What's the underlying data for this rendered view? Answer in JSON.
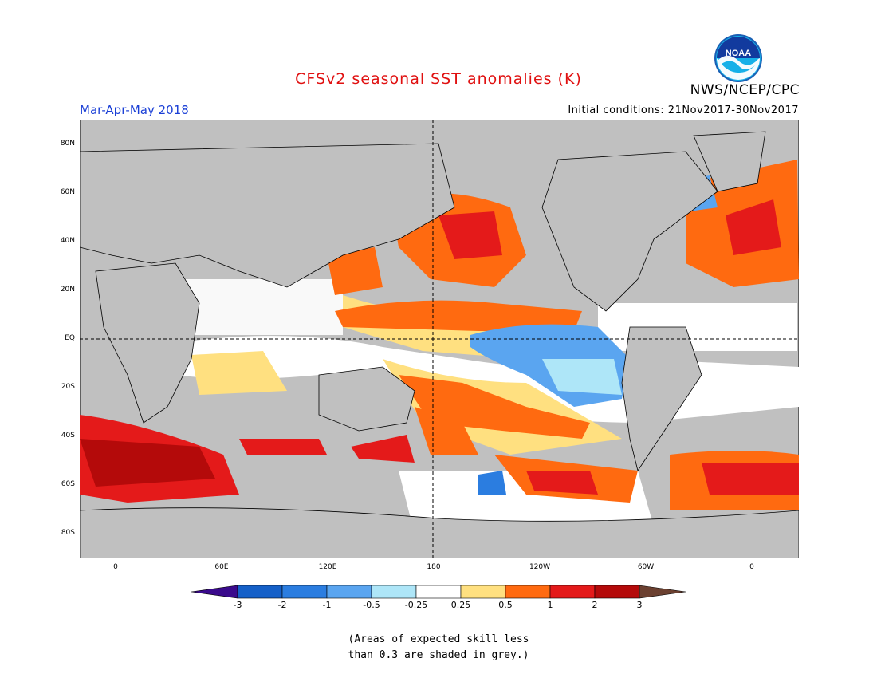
{
  "header": {
    "title": "CFSv2 seasonal SST anomalies (K)",
    "agency": "NWS/NCEP/CPC",
    "season": "Mar-Apr-May 2018",
    "initial_conditions": "Initial conditions: 21Nov2017-30Nov2017",
    "logo_text": "NOAA"
  },
  "axes": {
    "lat_labels": [
      "80N",
      "60N",
      "40N",
      "20N",
      "EQ",
      "20S",
      "40S",
      "60S",
      "80S"
    ],
    "lon_labels": [
      "0",
      "60E",
      "120E",
      "180",
      "120W",
      "60W",
      "0"
    ]
  },
  "colorbar": {
    "labels": [
      "-3",
      "-2",
      "-1",
      "-0.5",
      "-0.25",
      "0.25",
      "0.5",
      "1",
      "2",
      "3"
    ],
    "colors": [
      "#3a0a8c",
      "#1560c8",
      "#2b7de0",
      "#5aa5f0",
      "#aee6f8",
      "#ffffff",
      "#ffe080",
      "#ff6a10",
      "#e41a1a",
      "#b40a0a",
      "#6b4030"
    ]
  },
  "footnote": {
    "line1": "(Areas of expected skill less",
    "line2": "than 0.3 are shaded in grey.)"
  },
  "colors": {
    "title": "#e01010",
    "season": "#1a3fd6",
    "grey_mask": "#c0c0c0"
  }
}
